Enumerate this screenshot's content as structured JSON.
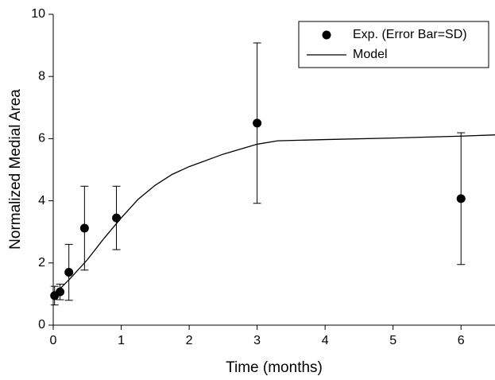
{
  "chart_data": {
    "type": "scatter",
    "xlabel": "Time (months)",
    "ylabel": "Normalized Medial Area",
    "xlim": [
      0,
      6.5
    ],
    "xticks": [
      0,
      1,
      2,
      3,
      4,
      5,
      6
    ],
    "ylim": [
      0,
      10
    ],
    "yticks": [
      0,
      2,
      4,
      6,
      8,
      10
    ],
    "legend": "upper right",
    "series": [
      {
        "name": "Exp. (Error Bar=SD)",
        "color": "#000000",
        "marker": "circle",
        "x": [
          0.02,
          0.1,
          0.23,
          0.46,
          0.93,
          3,
          6
        ],
        "values": [
          0.95,
          1.07,
          1.7,
          3.12,
          3.45,
          6.5,
          4.07
        ],
        "errors": [
          0.3,
          0.25,
          0.9,
          1.35,
          1.02,
          2.58,
          2.12
        ]
      },
      {
        "name": "Model",
        "color": "#000000",
        "marker": "line",
        "x": [
          0,
          0.25,
          0.5,
          0.75,
          1,
          1.25,
          1.5,
          1.75,
          2,
          2.5,
          3,
          3.3,
          4,
          5,
          6,
          6.5
        ],
        "values": [
          0.95,
          1.5,
          2.1,
          2.8,
          3.45,
          4.05,
          4.5,
          4.85,
          5.1,
          5.5,
          5.82,
          5.93,
          5.97,
          6.02,
          6.08,
          6.12
        ]
      }
    ]
  }
}
